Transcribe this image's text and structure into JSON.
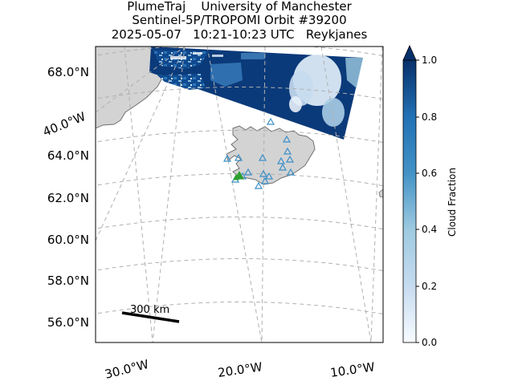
{
  "title": {
    "line1": "PlumeTraj    University of Manchester",
    "line2": "Sentinel-5P/TROPOMI Orbit #39200",
    "line3": "2025-05-07   10:21-10:23 UTC   Reykjanes"
  },
  "latitude_labels": [
    "68.0°N",
    "64.0°N",
    "62.0°N",
    "60.0°N",
    "58.0°N",
    "56.0°N"
  ],
  "longitude_labels": [
    "30.0°W",
    "20.0°W",
    "10.0°W"
  ],
  "side_longitude_label": "40.0°W",
  "scale_bar_label": "300 km",
  "colorbar": {
    "label": "Cloud Fraction",
    "ticks": [
      "0.0",
      "0.2",
      "0.4",
      "0.6",
      "0.8",
      "1.0"
    ],
    "colormap": "Blues",
    "extend": "max"
  },
  "colors": {
    "land": "#d3d3d3",
    "coastline": "#707070",
    "gridline": "#b0b0b0",
    "volcano_marker": "#3a8fc8",
    "target_volcano_marker": "#2ca02c",
    "swath_dark": "#0b3a7a",
    "swath_light": "#dbe9f6"
  },
  "map": {
    "projection": "conic",
    "gridlines": "dashed",
    "markers": {
      "volcanoes": "open blue triangles",
      "target": "green triangle"
    }
  }
}
